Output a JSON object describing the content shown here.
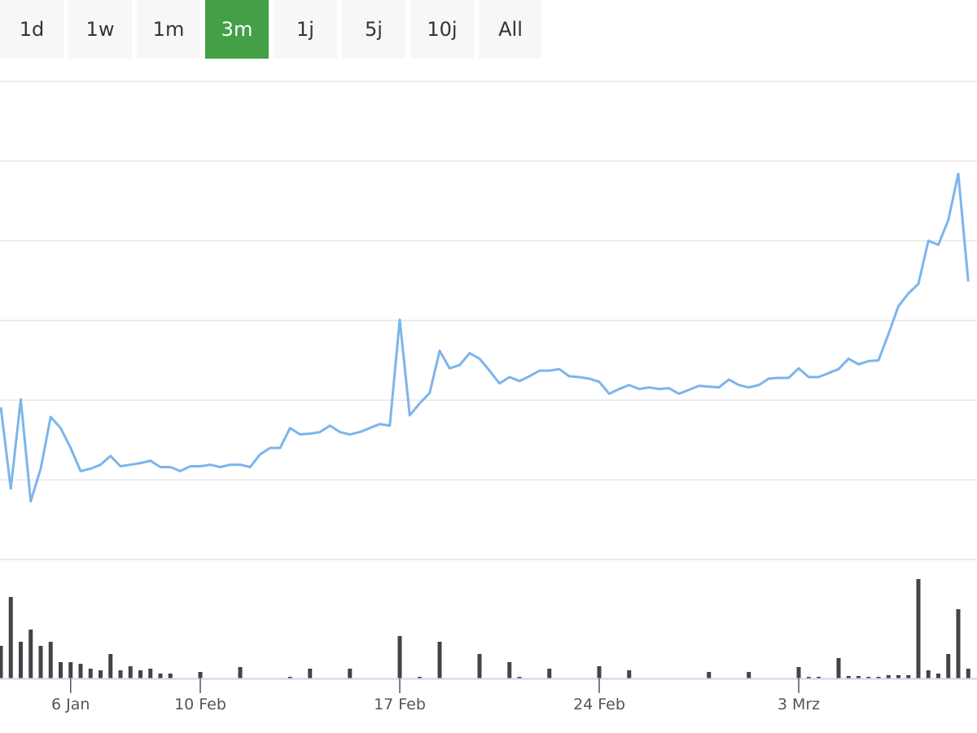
{
  "range_buttons": {
    "labels": [
      "1d",
      "1w",
      "1m",
      "3m",
      "1j",
      "5j",
      "10j",
      "All"
    ],
    "active": 3,
    "active_color": "#43a047"
  },
  "chart_data": {
    "type": "line",
    "categories": [
      null,
      null,
      null,
      null,
      null,
      null,
      null,
      "6 Jan",
      null,
      null,
      null,
      null,
      null,
      null,
      null,
      null,
      null,
      null,
      null,
      null,
      "10 Feb",
      null,
      null,
      null,
      null,
      null,
      null,
      null,
      null,
      null,
      null,
      null,
      null,
      null,
      null,
      null,
      null,
      null,
      null,
      null,
      "17 Feb",
      null,
      null,
      null,
      null,
      null,
      null,
      null,
      null,
      null,
      null,
      null,
      null,
      null,
      null,
      null,
      null,
      null,
      null,
      null,
      "24 Feb",
      null,
      null,
      null,
      null,
      null,
      null,
      null,
      null,
      null,
      null,
      null,
      null,
      null,
      null,
      null,
      null,
      null,
      null,
      null,
      "3 Mrz",
      null,
      null,
      null,
      null,
      null,
      null,
      null,
      null,
      null,
      null,
      null,
      null,
      null,
      null,
      null,
      null,
      null
    ],
    "values": [
      1.91,
      0.89,
      2.01,
      0.73,
      1.14,
      1.79,
      1.65,
      1.4,
      1.11,
      1.14,
      1.19,
      1.3,
      1.17,
      1.19,
      1.21,
      1.24,
      1.16,
      1.16,
      1.11,
      1.17,
      1.17,
      1.19,
      1.16,
      1.19,
      1.19,
      1.16,
      1.32,
      1.4,
      1.4,
      1.65,
      1.57,
      1.58,
      1.6,
      1.68,
      1.6,
      1.57,
      1.6,
      1.65,
      1.7,
      1.68,
      3.01,
      1.81,
      1.96,
      2.09,
      2.62,
      2.4,
      2.44,
      2.59,
      2.52,
      2.37,
      2.21,
      2.29,
      2.24,
      2.3,
      2.37,
      2.37,
      2.39,
      2.3,
      2.29,
      2.27,
      2.23,
      2.08,
      2.14,
      2.19,
      2.14,
      2.16,
      2.14,
      2.15,
      2.08,
      2.13,
      2.18,
      2.17,
      2.16,
      2.26,
      2.19,
      2.16,
      2.19,
      2.27,
      2.28,
      2.28,
      2.4,
      2.29,
      2.29,
      2.34,
      2.39,
      2.52,
      2.45,
      2.49,
      2.5,
      2.83,
      3.18,
      3.34,
      3.46,
      4.0,
      3.95,
      4.26,
      4.84,
      3.49
    ],
    "color": "#7cb5ec",
    "ylim": [
      0,
      6
    ],
    "yticks": [
      0,
      1,
      2,
      3,
      4,
      5,
      6
    ],
    "grid": true,
    "show_ytick_labels": false,
    "volume": {
      "color": "#434348",
      "ylim": [
        0,
        133
      ],
      "values": [
        40,
        100,
        45,
        60,
        40,
        45,
        20,
        20,
        18,
        12,
        10,
        30,
        10,
        15,
        10,
        12,
        6,
        6,
        0,
        0,
        8,
        0,
        0,
        0,
        14,
        0,
        0,
        0,
        0,
        2,
        0,
        12,
        0,
        0,
        0,
        12,
        0,
        0,
        0,
        0,
        52,
        0,
        2,
        0,
        45,
        0,
        0,
        0,
        30,
        0,
        0,
        20,
        2,
        0,
        0,
        12,
        0,
        0,
        0,
        0,
        15,
        0,
        0,
        10,
        0,
        0,
        0,
        0,
        0,
        0,
        0,
        8,
        0,
        0,
        0,
        8,
        0,
        0,
        0,
        0,
        14,
        2,
        2,
        0,
        25,
        3,
        3,
        2,
        2,
        4,
        4,
        4,
        122,
        10,
        6,
        30,
        85,
        12
      ]
    }
  }
}
